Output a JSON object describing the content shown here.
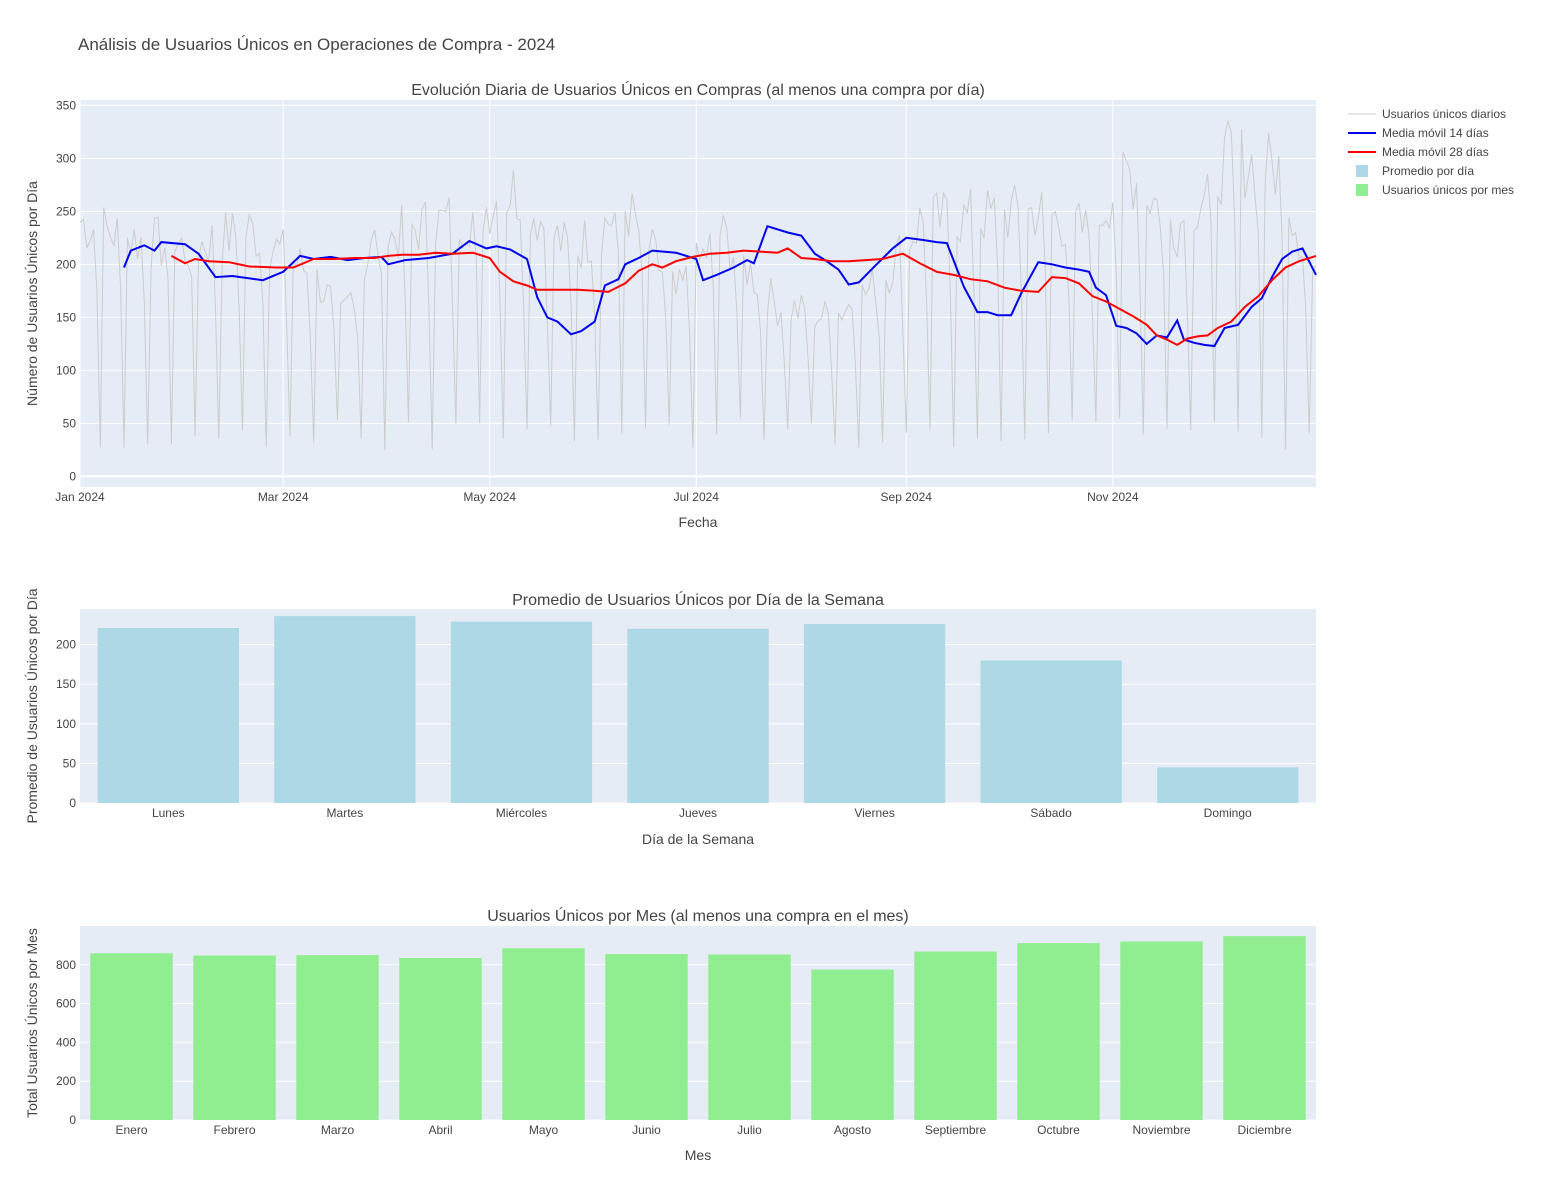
{
  "page": {
    "title": "Análisis de Usuarios Únicos en Operaciones de Compra - 2024"
  },
  "legend": {
    "items": [
      {
        "label": "Usuarios únicos diarios",
        "kind": "line",
        "color": "#cccccc"
      },
      {
        "label": "Media móvil 14 días",
        "kind": "line",
        "color": "#0000ee"
      },
      {
        "label": "Media móvil 28 días",
        "kind": "line",
        "color": "#ff0000"
      },
      {
        "label": "Promedio por día",
        "kind": "box",
        "color": "#add8e6"
      },
      {
        "label": "Usuarios únicos por mes",
        "kind": "box",
        "color": "#90ee90"
      }
    ]
  },
  "colors": {
    "plot_bg": "#e5ecf6",
    "grid": "#ffffff",
    "daily": "#cccccc",
    "ma14": "#0000ee",
    "ma28": "#ff0000",
    "weekday_bar": "#add8e6",
    "month_bar": "#90ee90"
  },
  "chart_data": [
    {
      "type": "line",
      "title": "Evolución Diaria de Usuarios Únicos en Compras (al menos una compra por día)",
      "xlabel": "Fecha",
      "ylabel": "Número de Usuarios Únicos por Día",
      "x_range": [
        "2024-01-01",
        "2024-12-31"
      ],
      "ylim": [
        -10,
        355
      ],
      "y_ticks": [
        0,
        50,
        100,
        150,
        200,
        250,
        300,
        350
      ],
      "x_ticks": [
        {
          "date": "2024-01-01",
          "label": "Jan 2024"
        },
        {
          "date": "2024-03-01",
          "label": "Mar 2024"
        },
        {
          "date": "2024-05-01",
          "label": "May 2024"
        },
        {
          "date": "2024-07-01",
          "label": "Jul 2024"
        },
        {
          "date": "2024-09-01",
          "label": "Sep 2024"
        },
        {
          "date": "2024-11-01",
          "label": "Nov 2024"
        }
      ],
      "series": [
        {
          "name": "Usuarios únicos diarios",
          "note_weekly_pattern": "weekday high, Saturday lower, Sunday low",
          "weekly_levels": [
            {
              "from": "2024-01-01",
              "level": 240
            },
            {
              "from": "2024-01-15",
              "level": 225
            },
            {
              "from": "2024-02-01",
              "level": 215
            },
            {
              "from": "2024-02-20",
              "level": 232
            },
            {
              "from": "2024-03-10",
              "level": 190
            },
            {
              "from": "2024-03-18",
              "level": 150
            },
            {
              "from": "2024-03-28",
              "level": 220
            },
            {
              "from": "2024-04-10",
              "level": 235
            },
            {
              "from": "2024-04-25",
              "level": 245
            },
            {
              "from": "2024-05-08",
              "level": 270
            },
            {
              "from": "2024-05-25",
              "level": 210
            },
            {
              "from": "2024-06-10",
              "level": 255
            },
            {
              "from": "2024-06-25",
              "level": 170
            },
            {
              "from": "2024-07-08",
              "level": 230
            },
            {
              "from": "2024-07-25",
              "level": 160
            },
            {
              "from": "2024-08-10",
              "level": 150
            },
            {
              "from": "2024-08-25",
              "level": 185
            },
            {
              "from": "2024-09-05",
              "level": 240
            },
            {
              "from": "2024-09-25",
              "level": 245
            },
            {
              "from": "2024-10-10",
              "level": 250
            },
            {
              "from": "2024-10-25",
              "level": 230
            },
            {
              "from": "2024-11-05",
              "level": 290
            },
            {
              "from": "2024-11-20",
              "level": 235
            },
            {
              "from": "2024-12-05",
              "level": 300
            },
            {
              "from": "2024-12-20",
              "level": 290
            },
            {
              "from": "2024-12-31",
              "level": 180
            }
          ]
        },
        {
          "name": "Media móvil 14 días",
          "points": [
            [
              "2024-01-14",
              197
            ],
            [
              "2024-01-16",
              213
            ],
            [
              "2024-01-20",
              218
            ],
            [
              "2024-01-23",
              213
            ],
            [
              "2024-01-25",
              221
            ],
            [
              "2024-02-01",
              219
            ],
            [
              "2024-02-05",
              210
            ],
            [
              "2024-02-10",
              188
            ],
            [
              "2024-02-15",
              189
            ],
            [
              "2024-02-24",
              185
            ],
            [
              "2024-03-01",
              193
            ],
            [
              "2024-03-06",
              208
            ],
            [
              "2024-03-10",
              205
            ],
            [
              "2024-03-15",
              207
            ],
            [
              "2024-03-20",
              204
            ],
            [
              "2024-03-25",
              206
            ],
            [
              "2024-03-30",
              207
            ],
            [
              "2024-04-01",
              200
            ],
            [
              "2024-04-06",
              204
            ],
            [
              "2024-04-13",
              206
            ],
            [
              "2024-04-20",
              210
            ],
            [
              "2024-04-25",
              222
            ],
            [
              "2024-04-30",
              215
            ],
            [
              "2024-05-03",
              217
            ],
            [
              "2024-05-07",
              214
            ],
            [
              "2024-05-12",
              205
            ],
            [
              "2024-05-15",
              169
            ],
            [
              "2024-05-18",
              150
            ],
            [
              "2024-05-21",
              146
            ],
            [
              "2024-05-25",
              134
            ],
            [
              "2024-05-28",
              137
            ],
            [
              "2024-06-01",
              146
            ],
            [
              "2024-06-04",
              180
            ],
            [
              "2024-06-08",
              186
            ],
            [
              "2024-06-10",
              200
            ],
            [
              "2024-06-14",
              206
            ],
            [
              "2024-06-18",
              213
            ],
            [
              "2024-06-25",
              211
            ],
            [
              "2024-07-01",
              205
            ],
            [
              "2024-07-03",
              185
            ],
            [
              "2024-07-07",
              190
            ],
            [
              "2024-07-12",
              197
            ],
            [
              "2024-07-16",
              204
            ],
            [
              "2024-07-18",
              201
            ],
            [
              "2024-07-22",
              236
            ],
            [
              "2024-07-28",
              230
            ],
            [
              "2024-08-01",
              227
            ],
            [
              "2024-08-05",
              210
            ],
            [
              "2024-08-08",
              204
            ],
            [
              "2024-08-12",
              195
            ],
            [
              "2024-08-15",
              181
            ],
            [
              "2024-08-18",
              183
            ],
            [
              "2024-08-22",
              196
            ],
            [
              "2024-08-28",
              215
            ],
            [
              "2024-09-01",
              225
            ],
            [
              "2024-09-06",
              223
            ],
            [
              "2024-09-10",
              221
            ],
            [
              "2024-09-13",
              220
            ],
            [
              "2024-09-18",
              179
            ],
            [
              "2024-09-22",
              155
            ],
            [
              "2024-09-25",
              155
            ],
            [
              "2024-09-28",
              152
            ],
            [
              "2024-10-02",
              152
            ],
            [
              "2024-10-05",
              173
            ],
            [
              "2024-10-10",
              202
            ],
            [
              "2024-10-14",
              200
            ],
            [
              "2024-10-18",
              197
            ],
            [
              "2024-10-22",
              195
            ],
            [
              "2024-10-25",
              193
            ],
            [
              "2024-10-27",
              178
            ],
            [
              "2024-10-30",
              171
            ],
            [
              "2024-11-02",
              142
            ],
            [
              "2024-11-05",
              140
            ],
            [
              "2024-11-08",
              135
            ],
            [
              "2024-11-11",
              125
            ],
            [
              "2024-11-14",
              133
            ],
            [
              "2024-11-17",
              131
            ],
            [
              "2024-11-20",
              147
            ],
            [
              "2024-11-22",
              129
            ],
            [
              "2024-11-25",
              126
            ],
            [
              "2024-11-28",
              124
            ],
            [
              "2024-12-01",
              123
            ],
            [
              "2024-12-04",
              140
            ],
            [
              "2024-12-08",
              143
            ],
            [
              "2024-12-12",
              160
            ],
            [
              "2024-12-15",
              168
            ],
            [
              "2024-12-18",
              188
            ],
            [
              "2024-12-21",
              205
            ],
            [
              "2024-12-24",
              212
            ],
            [
              "2024-12-27",
              215
            ],
            [
              "2024-12-31",
              190
            ]
          ]
        },
        {
          "name": "Media móvil 28 días",
          "points": [
            [
              "2024-01-28",
              208
            ],
            [
              "2024-02-01",
              201
            ],
            [
              "2024-02-04",
              205
            ],
            [
              "2024-02-08",
              203
            ],
            [
              "2024-02-14",
              202
            ],
            [
              "2024-02-20",
              198
            ],
            [
              "2024-02-28",
              197
            ],
            [
              "2024-03-04",
              197
            ],
            [
              "2024-03-10",
              205
            ],
            [
              "2024-03-16",
              205
            ],
            [
              "2024-03-22",
              206
            ],
            [
              "2024-03-28",
              206
            ],
            [
              "2024-04-01",
              208
            ],
            [
              "2024-04-05",
              209
            ],
            [
              "2024-04-10",
              209
            ],
            [
              "2024-04-15",
              211
            ],
            [
              "2024-04-20",
              210
            ],
            [
              "2024-04-26",
              211
            ],
            [
              "2024-05-01",
              206
            ],
            [
              "2024-05-04",
              193
            ],
            [
              "2024-05-08",
              184
            ],
            [
              "2024-05-12",
              180
            ],
            [
              "2024-05-15",
              176
            ],
            [
              "2024-05-20",
              176
            ],
            [
              "2024-05-27",
              176
            ],
            [
              "2024-06-01",
              175
            ],
            [
              "2024-06-05",
              174
            ],
            [
              "2024-06-10",
              182
            ],
            [
              "2024-06-14",
              194
            ],
            [
              "2024-06-18",
              200
            ],
            [
              "2024-06-21",
              197
            ],
            [
              "2024-06-25",
              203
            ],
            [
              "2024-06-30",
              207
            ],
            [
              "2024-07-05",
              210
            ],
            [
              "2024-07-10",
              211
            ],
            [
              "2024-07-15",
              213
            ],
            [
              "2024-07-20",
              212
            ],
            [
              "2024-07-25",
              211
            ],
            [
              "2024-07-28",
              215
            ],
            [
              "2024-08-01",
              206
            ],
            [
              "2024-08-05",
              205
            ],
            [
              "2024-08-10",
              203
            ],
            [
              "2024-08-15",
              203
            ],
            [
              "2024-08-20",
              204
            ],
            [
              "2024-08-25",
              205
            ],
            [
              "2024-08-31",
              210
            ],
            [
              "2024-09-05",
              201
            ],
            [
              "2024-09-10",
              193
            ],
            [
              "2024-09-15",
              190
            ],
            [
              "2024-09-20",
              186
            ],
            [
              "2024-09-25",
              184
            ],
            [
              "2024-09-30",
              178
            ],
            [
              "2024-10-05",
              175
            ],
            [
              "2024-10-10",
              174
            ],
            [
              "2024-10-14",
              188
            ],
            [
              "2024-10-18",
              187
            ],
            [
              "2024-10-22",
              182
            ],
            [
              "2024-10-26",
              170
            ],
            [
              "2024-10-30",
              165
            ],
            [
              "2024-11-03",
              158
            ],
            [
              "2024-11-07",
              151
            ],
            [
              "2024-11-11",
              143
            ],
            [
              "2024-11-14",
              133
            ],
            [
              "2024-11-17",
              129
            ],
            [
              "2024-11-20",
              124
            ],
            [
              "2024-11-23",
              130
            ],
            [
              "2024-11-26",
              132
            ],
            [
              "2024-11-29",
              133
            ],
            [
              "2024-12-02",
              140
            ],
            [
              "2024-12-06",
              146
            ],
            [
              "2024-12-10",
              160
            ],
            [
              "2024-12-14",
              170
            ],
            [
              "2024-12-18",
              185
            ],
            [
              "2024-12-22",
              197
            ],
            [
              "2024-12-26",
              203
            ],
            [
              "2024-12-31",
              208
            ]
          ]
        }
      ]
    },
    {
      "type": "bar",
      "title": "Promedio de Usuarios Únicos por Día de la Semana",
      "xlabel": "Día de la Semana",
      "ylabel": "Promedio de Usuarios Únicos por Día",
      "categories": [
        "Lunes",
        "Martes",
        "Miércoles",
        "Jueves",
        "Viernes",
        "Sábado",
        "Domingo"
      ],
      "values": [
        221,
        236,
        229,
        220,
        226,
        180,
        45
      ],
      "ylim": [
        0,
        245
      ],
      "y_ticks": [
        0,
        50,
        100,
        150,
        200
      ],
      "series_name": "Promedio por día"
    },
    {
      "type": "bar",
      "title": "Usuarios Únicos por Mes (al menos una compra en el mes)",
      "xlabel": "Mes",
      "ylabel": "Total Usuarios Únicos por Mes",
      "categories": [
        "Enero",
        "Febrero",
        "Marzo",
        "Abril",
        "Mayo",
        "Junio",
        "Julio",
        "Agosto",
        "Septiembre",
        "Octubre",
        "Noviembre",
        "Diciembre"
      ],
      "values": [
        860,
        848,
        850,
        835,
        885,
        855,
        853,
        775,
        868,
        912,
        920,
        948
      ],
      "ylim": [
        0,
        1000
      ],
      "y_ticks": [
        0,
        200,
        400,
        600,
        800
      ],
      "series_name": "Usuarios únicos por mes"
    }
  ]
}
